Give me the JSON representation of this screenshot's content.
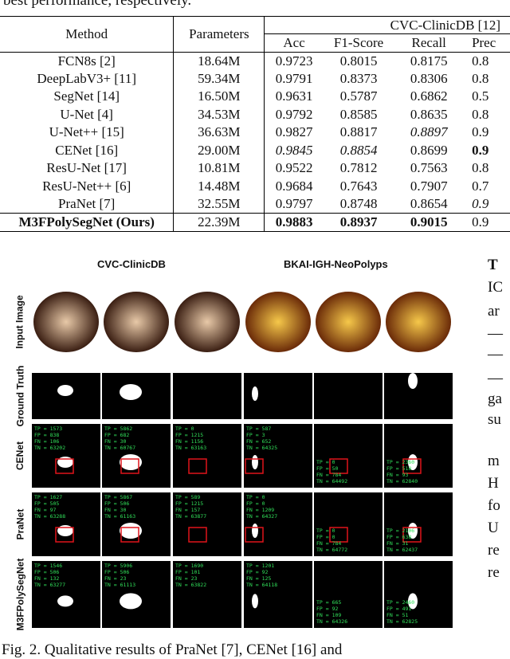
{
  "top_caption": "best performance, respectively.",
  "table": {
    "col_method": "Method",
    "col_params": "Parameters",
    "group": "CVC-ClinicDB [12]",
    "metrics": [
      "Acc",
      "F1-Score",
      "Recall",
      "Prec"
    ],
    "rows": [
      {
        "method": "FCN8s [2]",
        "params": "18.64M",
        "acc": "0.9723",
        "f1": "0.8015",
        "recall": "0.8175",
        "prec": "0.8"
      },
      {
        "method": "DeepLabV3+ [11]",
        "params": "59.34M",
        "acc": "0.9791",
        "f1": "0.8373",
        "recall": "0.8306",
        "prec": "0.8"
      },
      {
        "method": "SegNet [14]",
        "params": "16.50M",
        "acc": "0.9631",
        "f1": "0.5787",
        "recall": "0.6862",
        "prec": "0.5"
      },
      {
        "method": "U-Net [4]",
        "params": "34.53M",
        "acc": "0.9792",
        "f1": "0.8585",
        "recall": "0.8635",
        "prec": "0.8"
      },
      {
        "method": "U-Net++ [15]",
        "params": "36.63M",
        "acc": "0.9827",
        "f1": "0.8817",
        "recall": "0.8897",
        "prec": "0.9"
      },
      {
        "method": "CENet [16]",
        "params": "29.00M",
        "acc": "0.9845",
        "f1": "0.8854",
        "recall": "0.8699",
        "prec": "0.9"
      },
      {
        "method": "ResU-Net [17]",
        "params": "10.81M",
        "acc": "0.9522",
        "f1": "0.7812",
        "recall": "0.7563",
        "prec": "0.8"
      },
      {
        "method": "ResU-Net++ [6]",
        "params": "14.48M",
        "acc": "0.9684",
        "f1": "0.7643",
        "recall": "0.7907",
        "prec": "0.7"
      },
      {
        "method": "PraNet [7]",
        "params": "32.55M",
        "acc": "0.9797",
        "f1": "0.8748",
        "recall": "0.8654",
        "prec": "0.9"
      },
      {
        "method": "M3FPolySegNet (Ours)",
        "params": "22.39M",
        "acc": "0.9883",
        "f1": "0.8937",
        "recall": "0.9015",
        "prec": "0.9"
      }
    ]
  },
  "figure": {
    "dataset_left": "CVC-ClinicDB",
    "dataset_right": "BKAI-IGH-NeoPolyps",
    "row_labels": [
      "Input Image",
      "Ground Truth",
      "CENet",
      "PraNet",
      "M3FPolySegNet"
    ],
    "cenet_stats": [
      [
        "TP = 1573",
        "FP = 838",
        "FN = 106",
        "TN = 63202"
      ],
      [
        "TP = 5862",
        "FP = 682",
        "FN = 30",
        "TN = 60767"
      ],
      [
        "TP = 0",
        "FP = 1215",
        "FN = 1156",
        "TN = 63163"
      ],
      [
        "TP = 587",
        "FP = 3",
        "FN = 652",
        "TN = 64325"
      ],
      [
        "TP = 0",
        "FP = 50",
        "FN = 784",
        "TN = 64492"
      ],
      [
        "TP = 2360",
        "FP = 518",
        "FN = 93",
        "TN = 62840"
      ]
    ],
    "pranet_stats": [
      [
        "TP = 1627",
        "FP = 505",
        "FN = 97",
        "TN = 63288"
      ],
      [
        "TP = 5867",
        "FP = 506",
        "FN = 30",
        "TN = 61163"
      ],
      [
        "TP = 589",
        "FP = 1215",
        "FN = 157",
        "TN = 63877"
      ],
      [
        "TP = 0",
        "FP = 0",
        "FN = 1209",
        "TN = 64327"
      ],
      [
        "TP = 0",
        "FP = 0",
        "FN = 784",
        "TN = 64772"
      ],
      [
        "TP = 2106",
        "FP = 638",
        "FN = 31",
        "TN = 62437"
      ]
    ],
    "m3f_stats": [
      [
        "TP = 1546",
        "FP = 506",
        "FN = 132",
        "TN = 63277"
      ],
      [
        "TP = 5906",
        "FP = 506",
        "FN = 23",
        "TN = 61113"
      ],
      [
        "TP = 1690",
        "FP = 101",
        "FN = 23",
        "TN = 63822"
      ],
      [
        "TP = 1201",
        "FP = 92",
        "FN = 125",
        "TN = 64118"
      ],
      [
        "TP = 665",
        "FP = 92",
        "FN = 109",
        "TN = 64326"
      ],
      [
        "TP = 2460",
        "FP = 491",
        "FN = 51",
        "TN = 62825"
      ]
    ]
  },
  "right_column": [
    "T",
    "IC",
    "ar",
    "—",
    "—",
    "—",
    "ga",
    "su",
    "m",
    "H",
    "fo",
    "U",
    "re",
    "re"
  ],
  "fig_caption": "Fig. 2.  Qualitative results of PraNet [7], CENet [16] and"
}
